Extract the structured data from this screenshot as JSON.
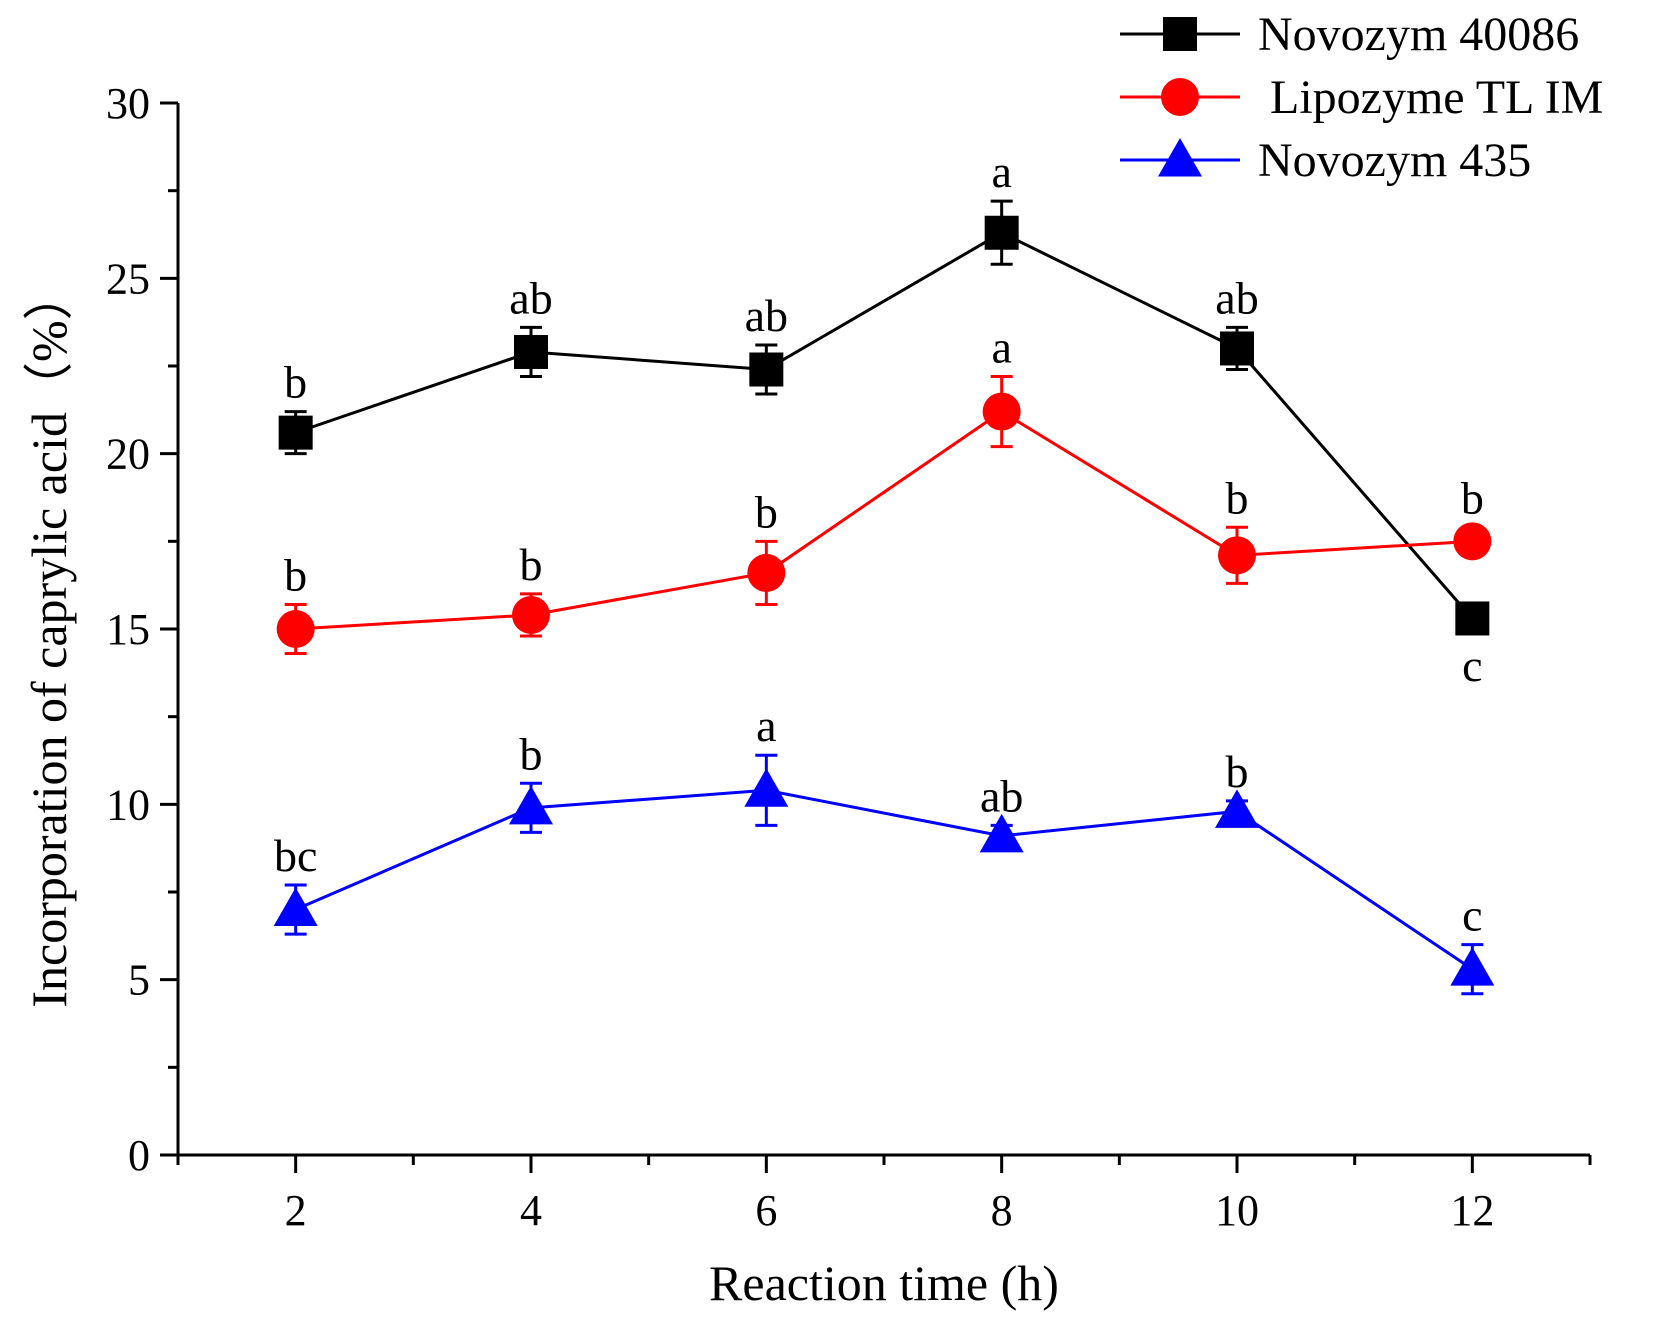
{
  "chart_data": {
    "type": "line",
    "xlabel": "Reaction time (h)",
    "ylabel": "Incorporation of caprylic acid（%）",
    "x": [
      2,
      4,
      6,
      8,
      10,
      12
    ],
    "xlim": [
      1,
      13
    ],
    "ylim": [
      0,
      30
    ],
    "xticks": [
      2,
      4,
      6,
      8,
      10,
      12
    ],
    "yticks": [
      0,
      5,
      10,
      15,
      20,
      25,
      30
    ],
    "legend_position": "top-right",
    "series": [
      {
        "name": "Novozym 40086",
        "color": "#000000",
        "marker": "square",
        "values": [
          20.6,
          22.9,
          22.4,
          26.3,
          23.0,
          15.3
        ],
        "errors": [
          0.6,
          0.7,
          0.7,
          0.9,
          0.6,
          0.3
        ],
        "letters": [
          "b",
          "ab",
          "ab",
          "a",
          "ab",
          "c"
        ],
        "letter_side": [
          "above",
          "above",
          "above",
          "above",
          "above",
          "below"
        ]
      },
      {
        "name": " Lipozyme TL IM",
        "color": "#ff0000",
        "marker": "circle",
        "values": [
          15.0,
          15.4,
          16.6,
          21.2,
          17.1,
          17.5
        ],
        "errors": [
          0.7,
          0.6,
          0.9,
          1.0,
          0.8,
          0.4
        ],
        "letters": [
          "b",
          "b",
          "b",
          "a",
          "b",
          "b"
        ],
        "letter_side": [
          "above",
          "above",
          "above",
          "above",
          "above",
          "above"
        ]
      },
      {
        "name": "Novozym 435",
        "color": "#0000ff",
        "marker": "triangle",
        "values": [
          7.0,
          9.9,
          10.4,
          9.1,
          9.8,
          5.3
        ],
        "errors": [
          0.7,
          0.7,
          1.0,
          0.3,
          0.3,
          0.7
        ],
        "letters": [
          "bc",
          "b",
          "a",
          "ab",
          "b",
          "c"
        ],
        "letter_side": [
          "above",
          "above",
          "above",
          "above",
          "above",
          "above"
        ]
      }
    ]
  }
}
